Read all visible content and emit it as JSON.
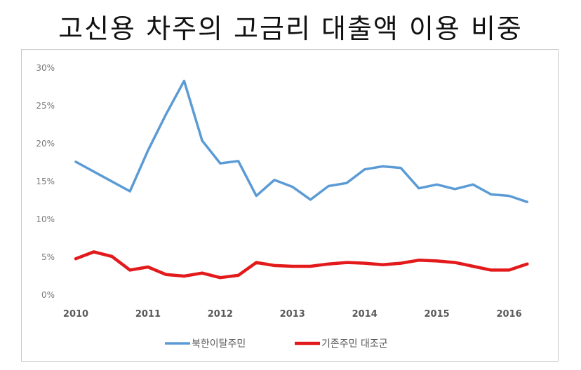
{
  "chart_data": {
    "type": "line",
    "title": "고신용 차주의 고금리 대출액 이용 비중",
    "xlabel": "",
    "ylabel": "",
    "ylim": [
      0,
      30
    ],
    "yticks": [
      "0%",
      "5%",
      "10%",
      "15%",
      "20%",
      "25%",
      "30%"
    ],
    "xlim": [
      2010,
      2016.5
    ],
    "xticks": [
      "2010",
      "2011",
      "2012",
      "2013",
      "2014",
      "2015",
      "2016"
    ],
    "grid": false,
    "legend_position": "bottom",
    "x": [
      2010.0,
      2010.25,
      2010.5,
      2010.75,
      2011.0,
      2011.25,
      2011.5,
      2011.75,
      2012.0,
      2012.25,
      2012.5,
      2012.75,
      2013.0,
      2013.25,
      2013.5,
      2013.75,
      2014.0,
      2014.25,
      2014.5,
      2014.75,
      2015.0,
      2015.25,
      2015.5,
      2015.75,
      2016.0,
      2016.25
    ],
    "series": [
      {
        "name": "북한이탈주민",
        "color": "#5b9bd5",
        "values": [
          17.6,
          null,
          null,
          13.7,
          19.1,
          23.9,
          28.3,
          20.4,
          17.4,
          17.7,
          13.1,
          15.2,
          14.3,
          12.6,
          14.4,
          14.8,
          16.6,
          17.0,
          16.8,
          14.1,
          14.6,
          14.0,
          14.6,
          13.3,
          13.1,
          12.3
        ]
      },
      {
        "name": "기존주민 대조군",
        "color": "#e31a1c",
        "values": [
          4.8,
          5.7,
          5.1,
          3.3,
          3.7,
          2.7,
          2.5,
          2.9,
          2.3,
          2.6,
          4.3,
          3.9,
          3.8,
          3.8,
          4.1,
          4.3,
          4.2,
          4.0,
          4.2,
          4.6,
          4.5,
          4.3,
          3.8,
          3.3,
          3.3,
          4.1
        ]
      }
    ]
  }
}
